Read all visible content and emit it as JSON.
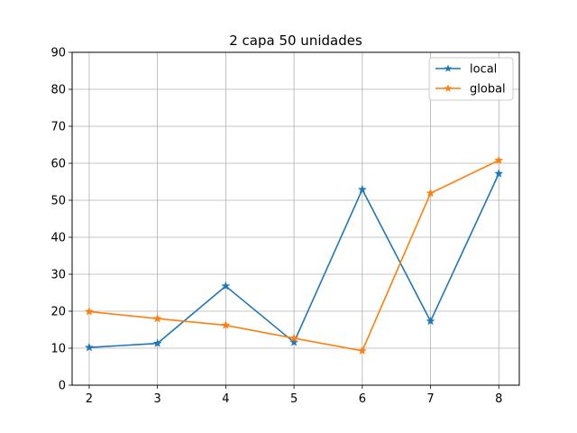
{
  "chart_data": {
    "type": "line",
    "title": "2 capa 50 unidades",
    "xlabel": "",
    "ylabel": "",
    "x": [
      2,
      3,
      4,
      5,
      6,
      7,
      8
    ],
    "xlim": [
      1.75,
      8.3
    ],
    "ylim": [
      0,
      90
    ],
    "xticks": [
      "2",
      "3",
      "4",
      "5",
      "6",
      "7",
      "8"
    ],
    "yticks": [
      "0",
      "10",
      "20",
      "30",
      "40",
      "50",
      "60",
      "70",
      "80",
      "90"
    ],
    "grid": true,
    "legend_position": "top-right",
    "marker": "star",
    "series": [
      {
        "name": "local",
        "color": "#1f77b4",
        "values": [
          10.2,
          11.3,
          26.8,
          11.6,
          52.9,
          17.3,
          57.2
        ]
      },
      {
        "name": "global",
        "color": "#ff7f0e",
        "values": [
          19.9,
          18.0,
          16.2,
          12.7,
          9.3,
          51.9,
          60.8
        ]
      }
    ]
  }
}
